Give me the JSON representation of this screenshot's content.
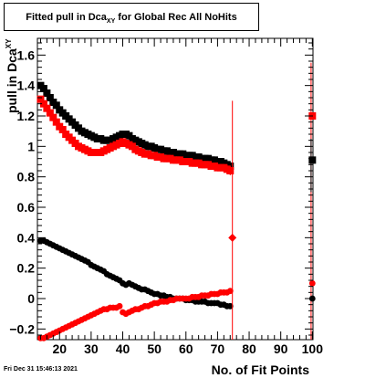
{
  "title_prefix": "Fitted pull in Dca",
  "title_sub": "XY",
  "title_suffix": " for Global Rec All NoHits",
  "timestamp": "Fri Dec 31 15:46:13 2021",
  "chart_data": {
    "type": "scatter",
    "xlabel": "No. of Fit Points",
    "ylabel_main": "pull in Dca",
    "ylabel_sub": "XY",
    "xlim": [
      13,
      100.2
    ],
    "ylim": [
      -0.27,
      1.71
    ],
    "xticks": [
      20,
      30,
      40,
      50,
      60,
      70,
      80,
      90,
      100
    ],
    "yticks": [
      -0.2,
      0,
      0.2,
      0.4,
      0.6,
      0.8,
      1,
      1.2,
      1.4,
      1.6
    ],
    "ytick_labels": [
      "−0.2",
      "0",
      "0.2",
      "0.4",
      "0.6",
      "0.8",
      "1",
      "1.2",
      "1.4",
      "1.6"
    ],
    "series": [
      {
        "role": "sigma",
        "color": "#000000",
        "marker": "square",
        "x": [
          14,
          15,
          16,
          17,
          18,
          19,
          20,
          21,
          22,
          23,
          24,
          25,
          26,
          27,
          28,
          29,
          30,
          31,
          32,
          33,
          34,
          35,
          36,
          37,
          38,
          39,
          40,
          41,
          42,
          43,
          44,
          45,
          46,
          47,
          48,
          49,
          50,
          51,
          52,
          53,
          54,
          55,
          56,
          57,
          58,
          59,
          60,
          61,
          62,
          63,
          64,
          65,
          66,
          67,
          68,
          69,
          70,
          71,
          72,
          73,
          74,
          100
        ],
        "y": [
          1.4,
          1.38,
          1.35,
          1.32,
          1.29,
          1.27,
          1.24,
          1.22,
          1.2,
          1.18,
          1.16,
          1.14,
          1.12,
          1.1,
          1.09,
          1.08,
          1.07,
          1.06,
          1.05,
          1.05,
          1.04,
          1.04,
          1.04,
          1.05,
          1.06,
          1.07,
          1.08,
          1.08,
          1.07,
          1.05,
          1.04,
          1.03,
          1.02,
          1.01,
          1.0,
          1.0,
          0.99,
          0.98,
          0.98,
          0.97,
          0.97,
          0.96,
          0.96,
          0.95,
          0.95,
          0.95,
          0.94,
          0.94,
          0.94,
          0.93,
          0.93,
          0.92,
          0.92,
          0.92,
          0.91,
          0.91,
          0.9,
          0.9,
          0.89,
          0.88,
          0.87,
          0.91
        ],
        "err": {
          "73": 0.02,
          "74": 0.02
        }
      },
      {
        "role": "sigma",
        "color": "#ff0000",
        "marker": "square",
        "x": [
          14,
          15,
          16,
          17,
          18,
          19,
          20,
          21,
          22,
          23,
          24,
          25,
          26,
          27,
          28,
          29,
          30,
          31,
          32,
          33,
          34,
          35,
          36,
          37,
          38,
          39,
          40,
          41,
          42,
          43,
          44,
          45,
          46,
          47,
          48,
          49,
          50,
          51,
          52,
          53,
          54,
          55,
          56,
          57,
          58,
          59,
          60,
          61,
          62,
          63,
          64,
          65,
          66,
          67,
          68,
          69,
          70,
          71,
          72,
          73,
          74,
          100
        ],
        "y": [
          1.31,
          1.28,
          1.25,
          1.22,
          1.19,
          1.16,
          1.13,
          1.11,
          1.08,
          1.06,
          1.04,
          1.02,
          1.0,
          0.99,
          0.98,
          0.97,
          0.96,
          0.96,
          0.96,
          0.96,
          0.97,
          0.98,
          0.99,
          1.0,
          1.01,
          1.02,
          1.03,
          1.02,
          1.01,
          1.0,
          0.98,
          0.97,
          0.96,
          0.95,
          0.95,
          0.94,
          0.94,
          0.93,
          0.93,
          0.92,
          0.92,
          0.92,
          0.91,
          0.91,
          0.91,
          0.9,
          0.9,
          0.9,
          0.89,
          0.89,
          0.89,
          0.88,
          0.88,
          0.88,
          0.87,
          0.87,
          0.86,
          0.86,
          0.86,
          0.85,
          0.84,
          1.2
        ],
        "err": {
          "73": 0.03,
          "74": 0.03
        }
      },
      {
        "role": "mean",
        "color": "#000000",
        "marker": "circle",
        "x": [
          14,
          15,
          16,
          17,
          18,
          19,
          20,
          21,
          22,
          23,
          24,
          25,
          26,
          27,
          28,
          29,
          30,
          31,
          32,
          33,
          34,
          35,
          36,
          37,
          38,
          39,
          40,
          41,
          42,
          43,
          44,
          45,
          46,
          47,
          48,
          49,
          50,
          51,
          52,
          53,
          54,
          55,
          56,
          57,
          58,
          59,
          60,
          61,
          62,
          63,
          64,
          65,
          66,
          67,
          68,
          69,
          70,
          71,
          72,
          73,
          74,
          100
        ],
        "y": [
          0.38,
          0.38,
          0.37,
          0.36,
          0.35,
          0.34,
          0.33,
          0.32,
          0.31,
          0.3,
          0.29,
          0.28,
          0.27,
          0.26,
          0.25,
          0.24,
          0.22,
          0.21,
          0.2,
          0.19,
          0.18,
          0.16,
          0.15,
          0.14,
          0.13,
          0.12,
          0.1,
          0.09,
          0.1,
          0.09,
          0.08,
          0.07,
          0.06,
          0.06,
          0.05,
          0.04,
          0.03,
          0.03,
          0.02,
          0.02,
          0.01,
          0.01,
          0.0,
          0.0,
          0.0,
          0.0,
          -0.01,
          -0.01,
          -0.01,
          -0.02,
          -0.02,
          -0.02,
          -0.02,
          -0.03,
          -0.03,
          -0.03,
          -0.03,
          -0.04,
          -0.04,
          -0.05,
          -0.05,
          0.0
        ],
        "err": {}
      },
      {
        "role": "mean",
        "color": "#ff0000",
        "marker": "circle",
        "x": [
          14,
          15,
          16,
          17,
          18,
          19,
          20,
          21,
          22,
          23,
          24,
          25,
          26,
          27,
          28,
          29,
          30,
          31,
          32,
          33,
          34,
          35,
          36,
          37,
          38,
          39,
          40,
          41,
          42,
          43,
          44,
          45,
          46,
          47,
          48,
          49,
          50,
          51,
          52,
          53,
          54,
          55,
          56,
          57,
          58,
          59,
          60,
          61,
          62,
          63,
          64,
          65,
          66,
          67,
          68,
          69,
          70,
          71,
          72,
          73,
          74,
          100
        ],
        "y": [
          -0.26,
          -0.26,
          -0.25,
          -0.24,
          -0.23,
          -0.22,
          -0.21,
          -0.2,
          -0.19,
          -0.18,
          -0.17,
          -0.16,
          -0.15,
          -0.14,
          -0.13,
          -0.12,
          -0.11,
          -0.1,
          -0.09,
          -0.08,
          -0.07,
          -0.07,
          -0.06,
          -0.06,
          -0.06,
          -0.05,
          -0.09,
          -0.1,
          -0.09,
          -0.08,
          -0.07,
          -0.07,
          -0.06,
          -0.05,
          -0.05,
          -0.04,
          -0.03,
          -0.03,
          -0.02,
          -0.02,
          -0.02,
          -0.01,
          -0.01,
          0.0,
          0.0,
          0.0,
          0.0,
          0.0,
          0.01,
          0.01,
          0.01,
          0.02,
          0.02,
          0.02,
          0.03,
          0.03,
          0.03,
          0.04,
          0.04,
          0.04,
          0.05,
          0.1
        ],
        "err": {}
      }
    ],
    "outlier_points": [
      {
        "x": 74.7,
        "y": 0.4,
        "color": "#ff0000",
        "err_lo": -0.27,
        "err_hi": 1.3
      }
    ],
    "edge_errors": [
      {
        "x": 99.6,
        "color": "#ff0000",
        "lo": -0.27,
        "hi": 1.55
      },
      {
        "x": 99.6,
        "color": "#000000",
        "lo": 0.7,
        "hi": 1.05
      }
    ]
  }
}
